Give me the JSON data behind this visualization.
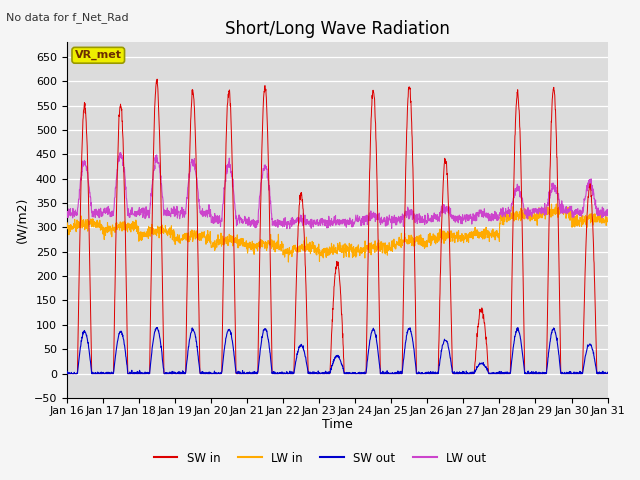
{
  "title": "Short/Long Wave Radiation",
  "topleft_text": "No data for f_Net_Rad",
  "ylabel": "(W/m2)",
  "xlabel": "Time",
  "ylim": [
    -50,
    680
  ],
  "yticks": [
    -50,
    0,
    50,
    100,
    150,
    200,
    250,
    300,
    350,
    400,
    450,
    500,
    550,
    600,
    650
  ],
  "bg_color": "#dcdcdc",
  "legend_box_label": "VR_met",
  "legend_box_color": "#eeee00",
  "series_colors": {
    "SW_in": "#dd0000",
    "LW_in": "#ffaa00",
    "SW_out": "#0000cc",
    "LW_out": "#cc44cc"
  },
  "legend_labels": [
    "SW in",
    "LW in",
    "SW out",
    "LW out"
  ],
  "n_days": 15,
  "start_day": 16,
  "pts_per_day": 144,
  "title_fontsize": 12,
  "label_fontsize": 9,
  "tick_fontsize": 8
}
